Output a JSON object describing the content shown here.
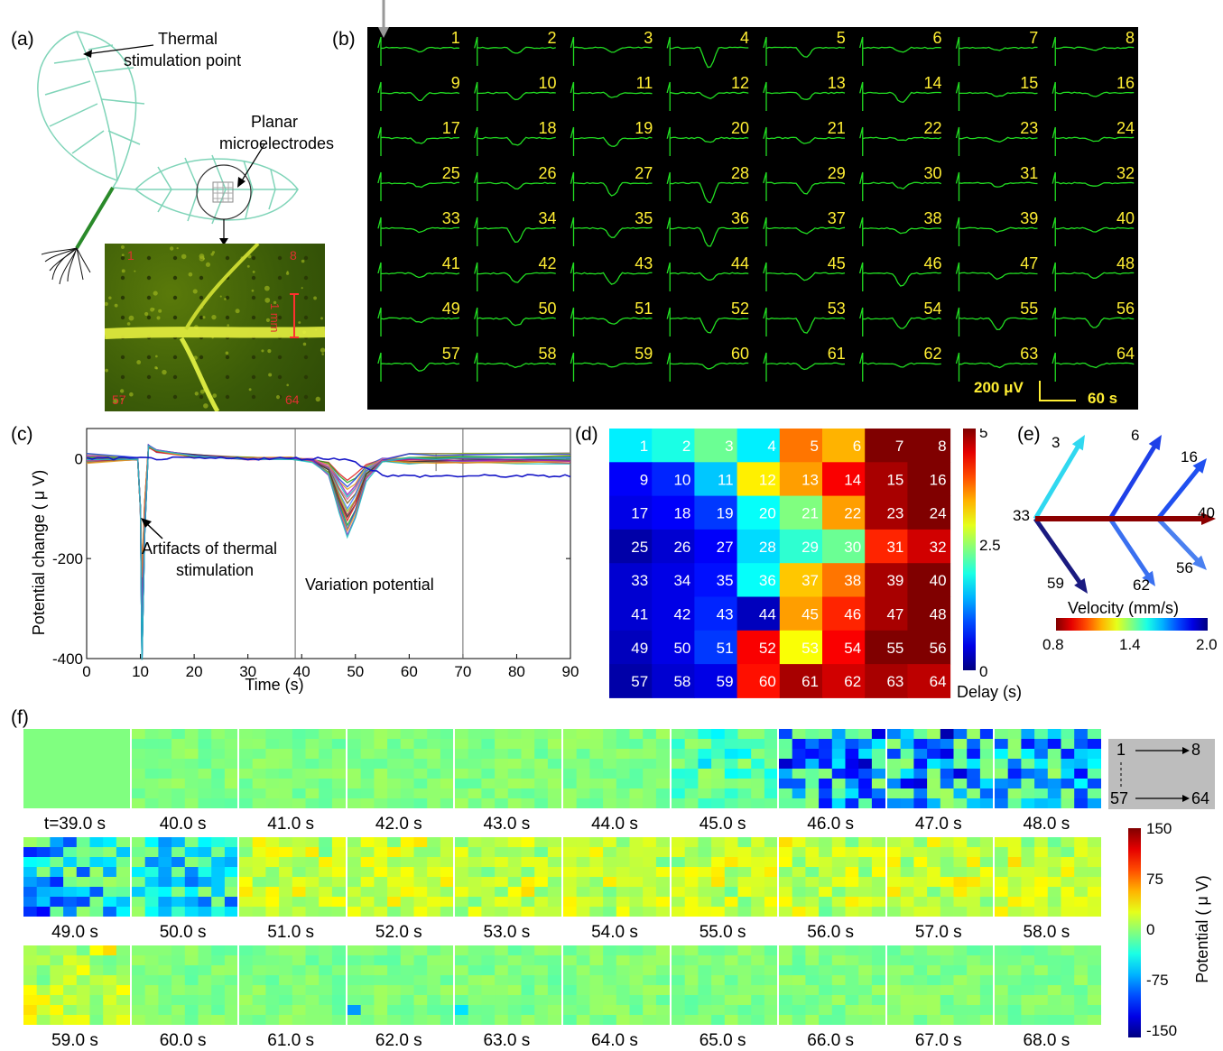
{
  "panel_labels": {
    "a": "(a)",
    "b": "(b)",
    "c": "(c)",
    "d": "(d)",
    "e": "(e)",
    "f": "(f)"
  },
  "panel_a": {
    "thermal_line1": "Thermal",
    "thermal_line2": "stimulation point",
    "planar_line1": "Planar",
    "planar_line2": "microelectrodes",
    "micro_corner_tl": "1",
    "micro_corner_tr": "8",
    "micro_corner_bl": "57",
    "micro_corner_br": "64",
    "scale": "1 mm"
  },
  "panel_b": {
    "channels": [
      1,
      2,
      3,
      4,
      5,
      6,
      7,
      8,
      9,
      10,
      11,
      12,
      13,
      14,
      15,
      16,
      17,
      18,
      19,
      20,
      21,
      22,
      23,
      24,
      25,
      26,
      27,
      28,
      29,
      30,
      31,
      32,
      33,
      34,
      35,
      36,
      37,
      38,
      39,
      40,
      41,
      42,
      43,
      44,
      45,
      46,
      47,
      48,
      49,
      50,
      51,
      52,
      53,
      54,
      55,
      56,
      57,
      58,
      59,
      60,
      61,
      62,
      63,
      64
    ],
    "scale_v": "200 μV",
    "scale_t": "60 s",
    "colors": {
      "trace": "#22dd22",
      "label": "#ffee33",
      "background": "#000000"
    }
  },
  "panel_c": {
    "ylabel": "Potential change ( μ V)",
    "xlabel": "Time (s)",
    "xticks": [
      "0",
      "10",
      "20",
      "30",
      "40",
      "50",
      "60",
      "70",
      "80",
      "90"
    ],
    "yticks": [
      "0",
      "-200",
      "-400"
    ],
    "annotation1_line1": "Artifacts of thermal",
    "annotation1_line2": "stimulation",
    "annotation2": "Variation potential"
  },
  "panel_d": {
    "colorbar_ticks": [
      "5",
      "2.5",
      "0"
    ],
    "colorbar_label": "Delay (s)"
  },
  "panel_e": {
    "labels": [
      "3",
      "6",
      "16",
      "33",
      "40",
      "59",
      "62",
      "56"
    ],
    "velocity_label": "Velocity (mm/s)",
    "ticks": [
      "0.8",
      "1.4",
      "2.0"
    ]
  },
  "panel_f": {
    "times": [
      "t=39.0 s",
      "40.0 s",
      "41.0 s",
      "42.0 s",
      "43.0 s",
      "44.0 s",
      "45.0 s",
      "46.0 s",
      "47.0 s",
      "48.0 s",
      "49.0 s",
      "50.0 s",
      "51.0 s",
      "52.0 s",
      "53.0 s",
      "54.0 s",
      "55.0 s",
      "56.0 s",
      "57.0 s",
      "58.0 s",
      "59.0 s",
      "60.0 s",
      "61.0 s",
      "62.0 s",
      "63.0 s",
      "64.0 s",
      "65.0 s",
      "66.0 s",
      "67.0 s",
      "68.0 s"
    ],
    "legend": {
      "a": "1",
      "b": "8",
      "c": "57",
      "d": "64"
    },
    "colorbar_ticks": [
      "150",
      "75",
      "0",
      "-75",
      "-150"
    ],
    "colorbar_label": "Potential  ( μ V)"
  },
  "chart_data": [
    {
      "type": "line",
      "title": "",
      "xlabel": "Time (s)",
      "ylabel": "Potential change ( μ V)",
      "xlim": [
        0,
        90
      ],
      "ylim": [
        -400,
        60
      ],
      "series": [
        {
          "name": "",
          "x": [
            0,
            9.5,
            10,
            10.3,
            10.8,
            11.5,
            13,
            20,
            30,
            38,
            42,
            45,
            47,
            48.5,
            50,
            52,
            55,
            60,
            65,
            70,
            80,
            90
          ],
          "y": [
            0,
            0,
            -100,
            -400,
            -150,
            25,
            15,
            5,
            0,
            0,
            -5,
            -30,
            -100,
            -145,
            -110,
            -40,
            -5,
            0,
            0,
            0,
            0,
            0
          ]
        }
      ]
    },
    {
      "type": "heatmap",
      "title": "",
      "rows": 8,
      "cols": 8,
      "values": [
        [
          1.8,
          2.0,
          2.4,
          1.8,
          3.8,
          3.5,
          5.0,
          5.0
        ],
        [
          0.6,
          0.8,
          1.6,
          3.2,
          3.6,
          4.4,
          4.8,
          5.2
        ],
        [
          0.5,
          0.6,
          0.9,
          1.9,
          2.5,
          3.6,
          4.8,
          5.2
        ],
        [
          0.2,
          0.4,
          0.6,
          1.7,
          2.1,
          2.4,
          4.2,
          4.6
        ],
        [
          0.4,
          0.5,
          0.7,
          1.9,
          3.4,
          3.8,
          4.8,
          5.2
        ],
        [
          0.4,
          0.5,
          0.8,
          0.3,
          3.6,
          4.2,
          4.8,
          5.1
        ],
        [
          0.3,
          0.5,
          0.9,
          4.4,
          3.1,
          4.4,
          5.1,
          5.3
        ],
        [
          0.2,
          0.4,
          0.5,
          4.3,
          4.8,
          4.6,
          4.8,
          4.7
        ]
      ],
      "colorbar_range": [
        0,
        5
      ]
    }
  ]
}
